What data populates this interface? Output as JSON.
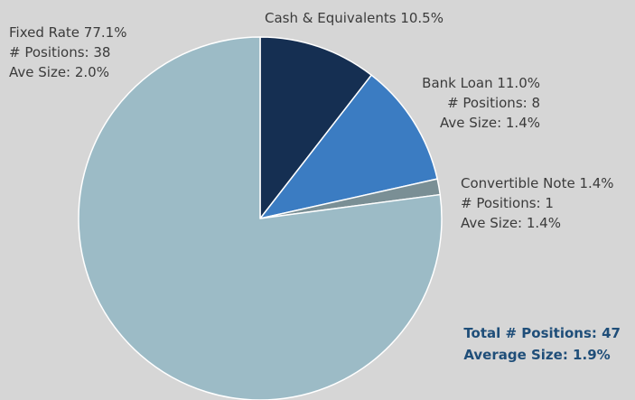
{
  "chart_data": {
    "type": "pie",
    "slices": [
      {
        "name": "Cash & Equivalents",
        "value": 10.5,
        "color": "#152f52"
      },
      {
        "name": "Bank Loan",
        "value": 11.0,
        "color": "#3b7cc2"
      },
      {
        "name": "Convertible Note",
        "value": 1.4,
        "color": "#7a8f95"
      },
      {
        "name": "Fixed Rate",
        "value": 77.1,
        "color": "#9cbbc6"
      }
    ],
    "labels": {
      "cash": {
        "line1": "Cash & Equivalents 10.5%"
      },
      "bank": {
        "line1": "Bank Loan 11.0%",
        "line2": "# Positions: 8",
        "line3": "Ave Size: 1.4%"
      },
      "conv": {
        "line1": "Convertible Note 1.4%",
        "line2": "# Positions: 1",
        "line3": "Ave Size: 1.4%"
      },
      "fixed": {
        "line1": "Fixed Rate 77.1%",
        "line2": "# Positions: 38",
        "line3": "Ave Size: 2.0%"
      }
    },
    "totals": {
      "positions": "Total # Positions: 47",
      "average": "Average Size: 1.9%"
    }
  }
}
